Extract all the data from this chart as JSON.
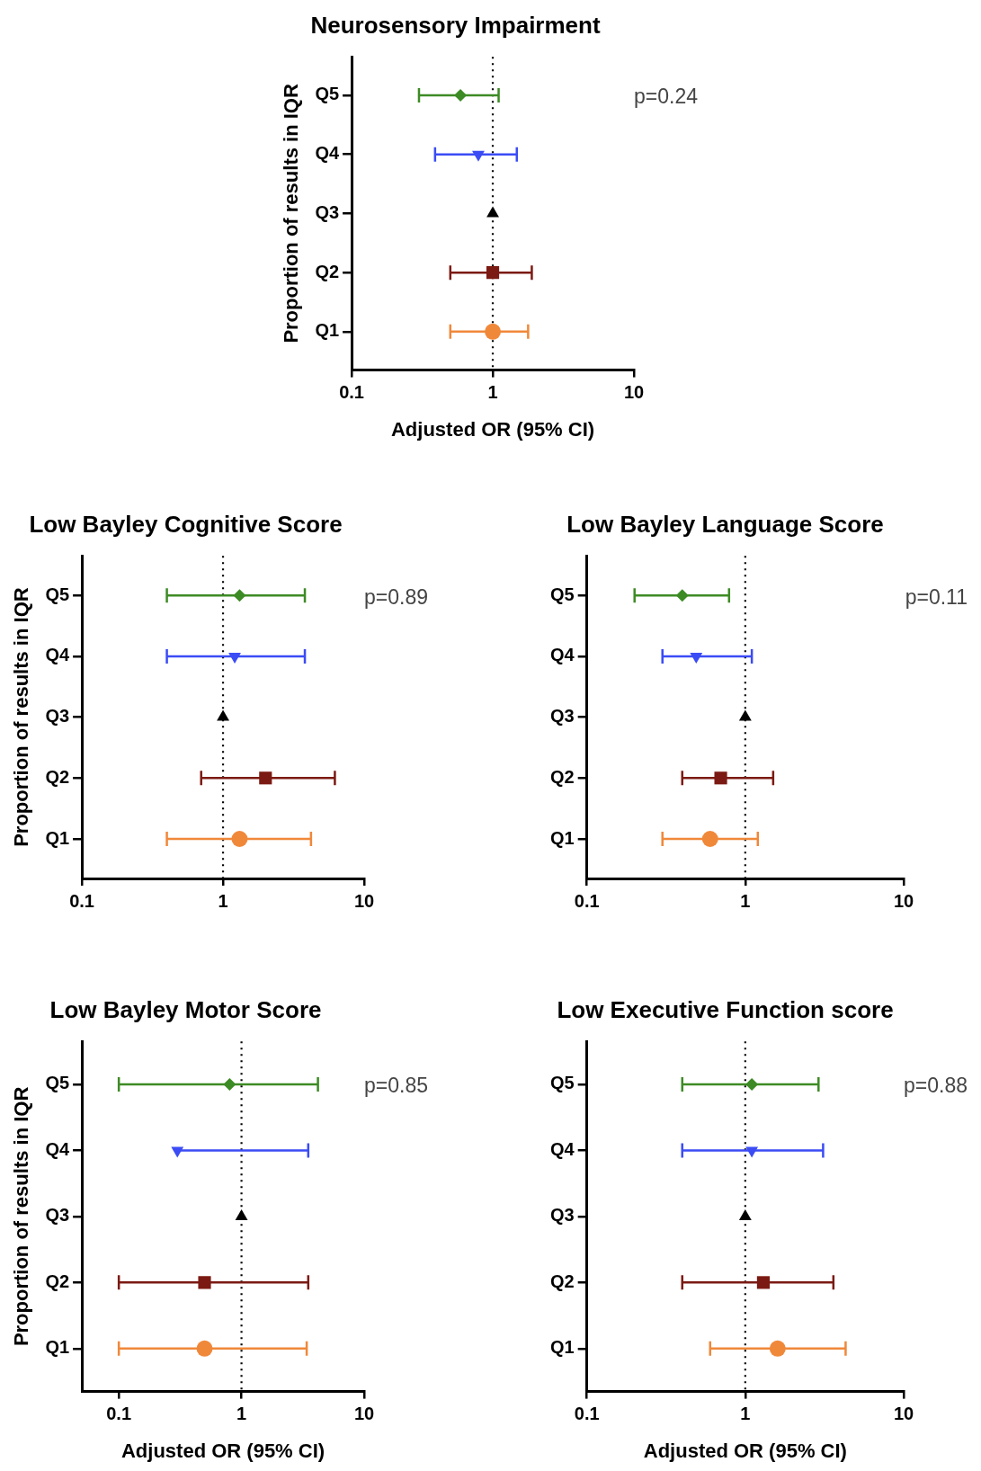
{
  "chart_data": [
    {
      "type": "scatter",
      "title": "Neurosensory Impairment",
      "orientation": "horizontal",
      "log": "x",
      "categories": [
        "Q5",
        "Q4",
        "Q3",
        "Q2",
        "Q1"
      ],
      "xlim": [
        0.1,
        10
      ],
      "xticks": [
        0.1,
        1,
        10
      ],
      "xlabel": "Adjusted OR (95% CI)",
      "ylabel": "Proportion of results in IQR",
      "annotations": [
        "p=0.24"
      ],
      "ref_lines": [
        {
          "axis": "x",
          "value": 1,
          "line_style": "dotted"
        }
      ],
      "series": [
        {
          "color": "#3d8b25",
          "marker": "diamond",
          "values": [
            0.59,
            null,
            null,
            null,
            null
          ],
          "errors": [
            [
              0.3,
              1.1
            ],
            null,
            null,
            null,
            null
          ]
        },
        {
          "color": "#3b4cf5",
          "values": [
            null,
            0.79,
            null,
            null,
            null
          ],
          "errors": [
            null,
            [
              0.39,
              1.48
            ],
            null,
            null,
            null
          ]
        },
        {
          "color": "#000000",
          "marker": "triangle",
          "values": [
            null,
            null,
            1,
            null,
            null
          ]
        },
        {
          "color": "#7b1a12",
          "marker": "square",
          "values": [
            null,
            null,
            null,
            1,
            null
          ],
          "errors": [
            null,
            null,
            null,
            [
              0.5,
              1.89
            ],
            null
          ]
        },
        {
          "color": "#f0883a",
          "marker": "circle",
          "values": [
            null,
            null,
            null,
            null,
            1
          ],
          "errors": [
            null,
            null,
            null,
            null,
            [
              0.5,
              1.78
            ]
          ]
        }
      ]
    },
    {
      "type": "scatter",
      "title": "Low Bayley Cognitive Score",
      "orientation": "horizontal",
      "log": "x",
      "categories": [
        "Q5",
        "Q4",
        "Q3",
        "Q2",
        "Q1"
      ],
      "xlim": [
        0.1,
        10
      ],
      "xticks": [
        0.1,
        1,
        10
      ],
      "ylabel": "Proportion of results in IQR",
      "annotations": [
        "p=0.89"
      ],
      "ref_lines": [
        {
          "axis": "x",
          "value": 1,
          "line_style": "dotted"
        }
      ],
      "series": [
        {
          "color": "#3d8b25",
          "marker": "diamond",
          "values": [
            1.31,
            null,
            null,
            null,
            null
          ],
          "errors": [
            [
              0.4,
              3.8
            ],
            null,
            null,
            null,
            null
          ]
        },
        {
          "color": "#3b4cf5",
          "values": [
            null,
            1.21,
            null,
            null,
            null
          ],
          "errors": [
            null,
            [
              0.4,
              3.8
            ],
            null,
            null,
            null
          ]
        },
        {
          "color": "#000000",
          "marker": "triangle",
          "values": [
            null,
            null,
            1,
            null,
            null
          ]
        },
        {
          "color": "#7b1a12",
          "marker": "square",
          "values": [
            null,
            null,
            null,
            2,
            null
          ],
          "errors": [
            null,
            null,
            null,
            [
              0.7,
              6.2
            ],
            null
          ]
        },
        {
          "color": "#f0883a",
          "marker": "circle",
          "values": [
            null,
            null,
            null,
            null,
            1.31
          ],
          "errors": [
            null,
            null,
            null,
            null,
            [
              0.4,
              4.2
            ]
          ]
        }
      ]
    },
    {
      "type": "scatter",
      "title": "Low Bayley Language Score",
      "orientation": "horizontal",
      "log": "x",
      "categories": [
        "Q5",
        "Q4",
        "Q3",
        "Q2",
        "Q1"
      ],
      "xlim": [
        0.1,
        10
      ],
      "xticks": [
        0.1,
        1,
        10
      ],
      "annotations": [
        "p=0.11"
      ],
      "ref_lines": [
        {
          "axis": "x",
          "value": 1,
          "line_style": "dotted"
        }
      ],
      "series": [
        {
          "color": "#3d8b25",
          "marker": "diamond",
          "values": [
            0.4,
            null,
            null,
            null,
            null
          ],
          "errors": [
            [
              0.2,
              0.79
            ],
            null,
            null,
            null,
            null
          ]
        },
        {
          "color": "#3b4cf5",
          "values": [
            null,
            0.49,
            null,
            null,
            null
          ],
          "errors": [
            null,
            [
              0.3,
              1.1
            ],
            null,
            null,
            null
          ]
        },
        {
          "color": "#000000",
          "marker": "triangle",
          "values": [
            null,
            null,
            1,
            null,
            null
          ]
        },
        {
          "color": "#7b1a12",
          "marker": "square",
          "values": [
            null,
            null,
            null,
            0.7,
            null
          ],
          "errors": [
            null,
            null,
            null,
            [
              0.4,
              1.5
            ],
            null
          ]
        },
        {
          "color": "#f0883a",
          "marker": "circle",
          "values": [
            null,
            null,
            null,
            null,
            0.6
          ],
          "errors": [
            null,
            null,
            null,
            null,
            [
              0.3,
              1.2
            ]
          ]
        }
      ]
    },
    {
      "type": "scatter",
      "title": "Low Bayley Motor Score",
      "orientation": "horizontal",
      "log": "x",
      "categories": [
        "Q5",
        "Q4",
        "Q3",
        "Q2",
        "Q1"
      ],
      "xlim": [
        0.05,
        10
      ],
      "xticks": [
        0.1,
        1,
        10
      ],
      "xlabel": "Adjusted OR (95% CI)",
      "ylabel": "Proportion of results in IQR",
      "annotations": [
        "p=0.85"
      ],
      "ref_lines": [
        {
          "axis": "x",
          "value": 1,
          "line_style": "dotted"
        }
      ],
      "series": [
        {
          "color": "#3d8b25",
          "marker": "diamond",
          "values": [
            0.8,
            null,
            null,
            null,
            null
          ],
          "errors": [
            [
              0.1,
              4.2
            ],
            null,
            null,
            null,
            null
          ]
        },
        {
          "color": "#3b4cf5",
          "values": [
            null,
            0.3,
            null,
            null,
            null
          ],
          "errors": [
            null,
            [
              0.3,
              3.5
            ],
            null,
            null,
            null
          ]
        },
        {
          "color": "#000000",
          "marker": "triangle",
          "values": [
            null,
            null,
            1,
            null,
            null
          ]
        },
        {
          "color": "#7b1a12",
          "marker": "square",
          "values": [
            null,
            null,
            null,
            0.5,
            null
          ],
          "errors": [
            null,
            null,
            null,
            [
              0.1,
              3.5
            ],
            null
          ]
        },
        {
          "color": "#f0883a",
          "marker": "circle",
          "values": [
            null,
            null,
            null,
            null,
            0.5
          ],
          "errors": [
            null,
            null,
            null,
            null,
            [
              0.1,
              3.4
            ]
          ]
        }
      ]
    },
    {
      "type": "scatter",
      "title": "Low Executive Function score",
      "orientation": "horizontal",
      "log": "x",
      "categories": [
        "Q5",
        "Q4",
        "Q3",
        "Q2",
        "Q1"
      ],
      "xlim": [
        0.1,
        10
      ],
      "xticks": [
        0.1,
        1,
        10
      ],
      "xlabel": "Adjusted OR (95% CI)",
      "annotations": [
        "p=0.88"
      ],
      "ref_lines": [
        {
          "axis": "x",
          "value": 1,
          "line_style": "dotted"
        }
      ],
      "series": [
        {
          "color": "#3d8b25",
          "marker": "diamond",
          "values": [
            1.1,
            null,
            null,
            null,
            null
          ],
          "errors": [
            [
              0.4,
              2.9
            ],
            null,
            null,
            null,
            null
          ]
        },
        {
          "color": "#3b4cf5",
          "values": [
            null,
            1.1,
            null,
            null,
            null
          ],
          "errors": [
            null,
            [
              0.4,
              3.1
            ],
            null,
            null,
            null
          ]
        },
        {
          "color": "#000000",
          "marker": "triangle",
          "values": [
            null,
            null,
            1,
            null,
            null
          ]
        },
        {
          "color": "#7b1a12",
          "marker": "square",
          "values": [
            null,
            null,
            null,
            1.3,
            null
          ],
          "errors": [
            null,
            null,
            null,
            [
              0.4,
              3.6
            ],
            null
          ]
        },
        {
          "color": "#f0883a",
          "marker": "circle",
          "values": [
            null,
            null,
            null,
            null,
            1.6
          ],
          "errors": [
            null,
            null,
            null,
            null,
            [
              0.6,
              4.3
            ]
          ]
        }
      ]
    }
  ]
}
